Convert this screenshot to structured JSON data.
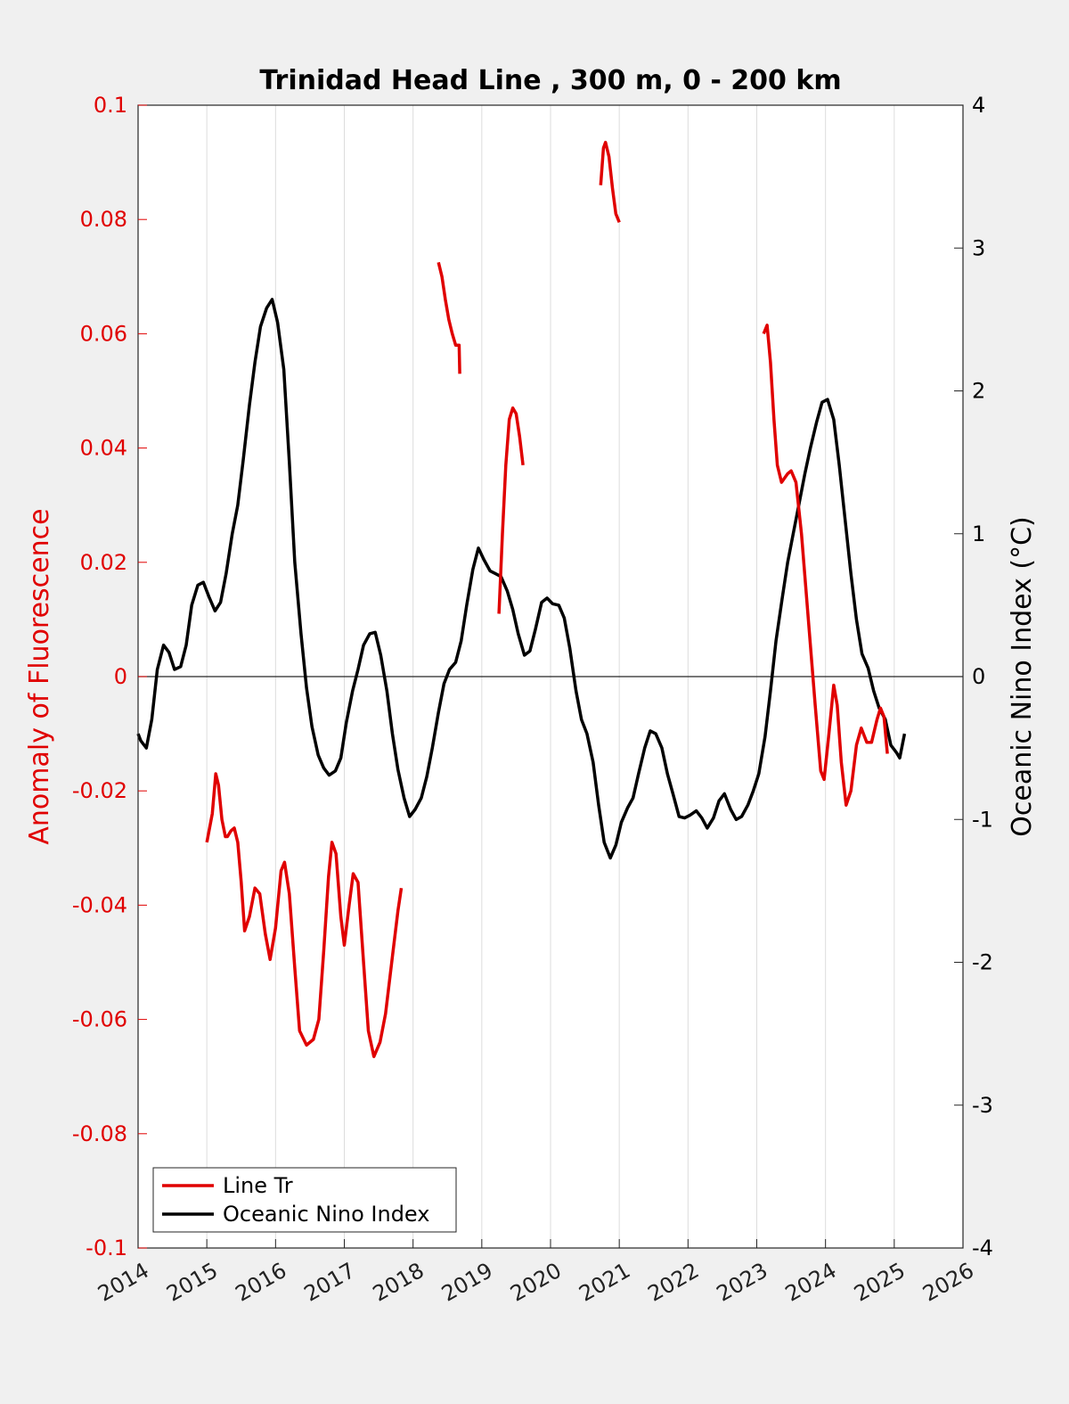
{
  "chart_data": {
    "type": "line",
    "title": "Trinidad Head Line , 300 m, 0 - 200 km",
    "xlim": [
      2014,
      2026
    ],
    "x_ticks": [
      "2014",
      "2015",
      "2016",
      "2017",
      "2018",
      "2019",
      "2020",
      "2021",
      "2022",
      "2023",
      "2024",
      "2025",
      "2026"
    ],
    "grid": "vertical",
    "legend_position": "bottom-left",
    "left_axis": {
      "label": "Anomaly of Fluorescence",
      "ylim": [
        -0.1,
        0.1
      ],
      "ticks": [
        "0.1",
        "0.08",
        "0.06",
        "0.04",
        "0.02",
        "0",
        "-0.02",
        "-0.04",
        "-0.06",
        "-0.08",
        "-0.1"
      ],
      "color": "#e00000"
    },
    "right_axis": {
      "label": "Oceanic Nino Index (°C)",
      "ylim": [
        -4,
        4
      ],
      "ticks": [
        "4",
        "3",
        "2",
        "1",
        "0",
        "-1",
        "-2",
        "-3",
        "-4"
      ],
      "color": "#000000"
    },
    "series": [
      {
        "name": "Line Tr",
        "axis": "left",
        "color": "#e00000",
        "segments": [
          [
            [
              2015.0,
              -0.029
            ],
            [
              2015.08,
              -0.024
            ],
            [
              2015.13,
              -0.017
            ],
            [
              2015.17,
              -0.019
            ],
            [
              2015.22,
              -0.025
            ],
            [
              2015.27,
              -0.028
            ],
            [
              2015.3,
              -0.028
            ],
            [
              2015.35,
              -0.027
            ],
            [
              2015.4,
              -0.0265
            ],
            [
              2015.45,
              -0.029
            ],
            [
              2015.5,
              -0.036
            ],
            [
              2015.55,
              -0.0445
            ],
            [
              2015.62,
              -0.042
            ],
            [
              2015.7,
              -0.037
            ],
            [
              2015.77,
              -0.038
            ],
            [
              2015.85,
              -0.045
            ],
            [
              2015.92,
              -0.0495
            ],
            [
              2016.0,
              -0.044
            ],
            [
              2016.08,
              -0.034
            ],
            [
              2016.13,
              -0.0325
            ],
            [
              2016.2,
              -0.038
            ],
            [
              2016.28,
              -0.051
            ],
            [
              2016.35,
              -0.062
            ],
            [
              2016.45,
              -0.0645
            ],
            [
              2016.55,
              -0.0635
            ],
            [
              2016.63,
              -0.06
            ],
            [
              2016.7,
              -0.048
            ],
            [
              2016.77,
              -0.035
            ],
            [
              2016.82,
              -0.029
            ],
            [
              2016.88,
              -0.031
            ],
            [
              2016.95,
              -0.042
            ],
            [
              2017.0,
              -0.047
            ],
            [
              2017.07,
              -0.04
            ],
            [
              2017.13,
              -0.0345
            ],
            [
              2017.2,
              -0.036
            ],
            [
              2017.28,
              -0.05
            ],
            [
              2017.35,
              -0.062
            ],
            [
              2017.43,
              -0.0665
            ],
            [
              2017.52,
              -0.064
            ],
            [
              2017.6,
              -0.059
            ],
            [
              2017.7,
              -0.049
            ],
            [
              2017.78,
              -0.041
            ],
            [
              2017.83,
              -0.037
            ]
          ],
          [
            [
              2018.37,
              0.0725
            ],
            [
              2018.42,
              0.07
            ],
            [
              2018.47,
              0.066
            ],
            [
              2018.52,
              0.0625
            ],
            [
              2018.57,
              0.06
            ],
            [
              2018.62,
              0.058
            ],
            [
              2018.67,
              0.058
            ],
            [
              2018.68,
              0.053
            ]
          ],
          [
            [
              2019.25,
              0.011
            ],
            [
              2019.3,
              0.025
            ],
            [
              2019.35,
              0.037
            ],
            [
              2019.4,
              0.045
            ],
            [
              2019.45,
              0.047
            ],
            [
              2019.5,
              0.046
            ],
            [
              2019.55,
              0.042
            ],
            [
              2019.6,
              0.037
            ]
          ],
          [
            [
              2020.73,
              0.086
            ],
            [
              2020.77,
              0.0925
            ],
            [
              2020.8,
              0.0935
            ],
            [
              2020.85,
              0.091
            ],
            [
              2020.9,
              0.0855
            ],
            [
              2020.95,
              0.081
            ],
            [
              2021.0,
              0.0795
            ]
          ],
          [
            [
              2023.1,
              0.06
            ],
            [
              2023.15,
              0.0615
            ],
            [
              2023.2,
              0.055
            ],
            [
              2023.25,
              0.045
            ],
            [
              2023.3,
              0.037
            ],
            [
              2023.36,
              0.034
            ],
            [
              2023.45,
              0.0355
            ],
            [
              2023.5,
              0.036
            ],
            [
              2023.57,
              0.034
            ],
            [
              2023.65,
              0.025
            ],
            [
              2023.75,
              0.01
            ],
            [
              2023.85,
              -0.005
            ],
            [
              2023.93,
              -0.0165
            ],
            [
              2023.98,
              -0.018
            ],
            [
              2024.05,
              -0.01
            ],
            [
              2024.12,
              -0.0015
            ],
            [
              2024.17,
              -0.005
            ],
            [
              2024.23,
              -0.015
            ],
            [
              2024.3,
              -0.0225
            ],
            [
              2024.37,
              -0.02
            ],
            [
              2024.45,
              -0.012
            ],
            [
              2024.52,
              -0.009
            ],
            [
              2024.6,
              -0.0115
            ],
            [
              2024.67,
              -0.0115
            ],
            [
              2024.75,
              -0.0075
            ],
            [
              2024.8,
              -0.0055
            ],
            [
              2024.85,
              -0.007
            ],
            [
              2024.9,
              -0.0135
            ]
          ]
        ]
      },
      {
        "name": "Oceanic Nino Index",
        "axis": "right",
        "color": "#000000",
        "points": [
          [
            2014.0,
            -0.4
          ],
          [
            2014.04,
            -0.45
          ],
          [
            2014.12,
            -0.5
          ],
          [
            2014.2,
            -0.3
          ],
          [
            2014.28,
            0.05
          ],
          [
            2014.37,
            0.22
          ],
          [
            2014.45,
            0.17
          ],
          [
            2014.53,
            0.05
          ],
          [
            2014.62,
            0.07
          ],
          [
            2014.7,
            0.22
          ],
          [
            2014.78,
            0.5
          ],
          [
            2014.87,
            0.64
          ],
          [
            2014.95,
            0.66
          ],
          [
            2015.03,
            0.56
          ],
          [
            2015.12,
            0.46
          ],
          [
            2015.2,
            0.52
          ],
          [
            2015.28,
            0.72
          ],
          [
            2015.37,
            1.0
          ],
          [
            2015.45,
            1.2
          ],
          [
            2015.53,
            1.52
          ],
          [
            2015.62,
            1.9
          ],
          [
            2015.7,
            2.2
          ],
          [
            2015.78,
            2.45
          ],
          [
            2015.87,
            2.58
          ],
          [
            2015.95,
            2.64
          ],
          [
            2016.03,
            2.48
          ],
          [
            2016.12,
            2.15
          ],
          [
            2016.2,
            1.5
          ],
          [
            2016.28,
            0.8
          ],
          [
            2016.37,
            0.3
          ],
          [
            2016.45,
            -0.08
          ],
          [
            2016.53,
            -0.35
          ],
          [
            2016.62,
            -0.55
          ],
          [
            2016.7,
            -0.64
          ],
          [
            2016.78,
            -0.69
          ],
          [
            2016.87,
            -0.66
          ],
          [
            2016.95,
            -0.57
          ],
          [
            2017.03,
            -0.32
          ],
          [
            2017.12,
            -0.1
          ],
          [
            2017.2,
            0.05
          ],
          [
            2017.28,
            0.22
          ],
          [
            2017.37,
            0.3
          ],
          [
            2017.45,
            0.31
          ],
          [
            2017.53,
            0.15
          ],
          [
            2017.62,
            -0.1
          ],
          [
            2017.7,
            -0.4
          ],
          [
            2017.78,
            -0.65
          ],
          [
            2017.87,
            -0.85
          ],
          [
            2017.95,
            -0.98
          ],
          [
            2018.03,
            -0.93
          ],
          [
            2018.12,
            -0.85
          ],
          [
            2018.2,
            -0.7
          ],
          [
            2018.28,
            -0.5
          ],
          [
            2018.37,
            -0.25
          ],
          [
            2018.45,
            -0.05
          ],
          [
            2018.53,
            0.05
          ],
          [
            2018.62,
            0.1
          ],
          [
            2018.7,
            0.25
          ],
          [
            2018.78,
            0.5
          ],
          [
            2018.87,
            0.75
          ],
          [
            2018.95,
            0.9
          ],
          [
            2019.03,
            0.82
          ],
          [
            2019.12,
            0.74
          ],
          [
            2019.2,
            0.72
          ],
          [
            2019.28,
            0.7
          ],
          [
            2019.37,
            0.6
          ],
          [
            2019.45,
            0.47
          ],
          [
            2019.53,
            0.3
          ],
          [
            2019.62,
            0.15
          ],
          [
            2019.7,
            0.18
          ],
          [
            2019.78,
            0.33
          ],
          [
            2019.87,
            0.52
          ],
          [
            2019.95,
            0.55
          ],
          [
            2020.03,
            0.51
          ],
          [
            2020.12,
            0.5
          ],
          [
            2020.2,
            0.41
          ],
          [
            2020.28,
            0.2
          ],
          [
            2020.37,
            -0.1
          ],
          [
            2020.45,
            -0.3
          ],
          [
            2020.53,
            -0.4
          ],
          [
            2020.62,
            -0.6
          ],
          [
            2020.7,
            -0.9
          ],
          [
            2020.78,
            -1.16
          ],
          [
            2020.87,
            -1.27
          ],
          [
            2020.95,
            -1.18
          ],
          [
            2021.03,
            -1.02
          ],
          [
            2021.12,
            -0.92
          ],
          [
            2021.2,
            -0.85
          ],
          [
            2021.28,
            -0.68
          ],
          [
            2021.37,
            -0.5
          ],
          [
            2021.45,
            -0.38
          ],
          [
            2021.53,
            -0.4
          ],
          [
            2021.62,
            -0.5
          ],
          [
            2021.7,
            -0.68
          ],
          [
            2021.78,
            -0.82
          ],
          [
            2021.87,
            -0.98
          ],
          [
            2021.95,
            -0.99
          ],
          [
            2022.03,
            -0.97
          ],
          [
            2022.12,
            -0.94
          ],
          [
            2022.2,
            -0.99
          ],
          [
            2022.28,
            -1.06
          ],
          [
            2022.37,
            -0.99
          ],
          [
            2022.45,
            -0.87
          ],
          [
            2022.53,
            -0.82
          ],
          [
            2022.62,
            -0.93
          ],
          [
            2022.7,
            -1.0
          ],
          [
            2022.78,
            -0.98
          ],
          [
            2022.87,
            -0.9
          ],
          [
            2022.95,
            -0.8
          ],
          [
            2023.03,
            -0.68
          ],
          [
            2023.12,
            -0.42
          ],
          [
            2023.2,
            -0.1
          ],
          [
            2023.28,
            0.25
          ],
          [
            2023.37,
            0.55
          ],
          [
            2023.45,
            0.8
          ],
          [
            2023.53,
            1.0
          ],
          [
            2023.62,
            1.22
          ],
          [
            2023.7,
            1.42
          ],
          [
            2023.78,
            1.6
          ],
          [
            2023.87,
            1.78
          ],
          [
            2023.95,
            1.92
          ],
          [
            2024.03,
            1.94
          ],
          [
            2024.12,
            1.8
          ],
          [
            2024.2,
            1.48
          ],
          [
            2024.28,
            1.12
          ],
          [
            2024.37,
            0.72
          ],
          [
            2024.45,
            0.4
          ],
          [
            2024.53,
            0.16
          ],
          [
            2024.62,
            0.06
          ],
          [
            2024.7,
            -0.1
          ],
          [
            2024.78,
            -0.22
          ],
          [
            2024.87,
            -0.3
          ],
          [
            2024.95,
            -0.48
          ],
          [
            2025.03,
            -0.53
          ],
          [
            2025.08,
            -0.57
          ],
          [
            2025.15,
            -0.4
          ]
        ]
      }
    ]
  }
}
